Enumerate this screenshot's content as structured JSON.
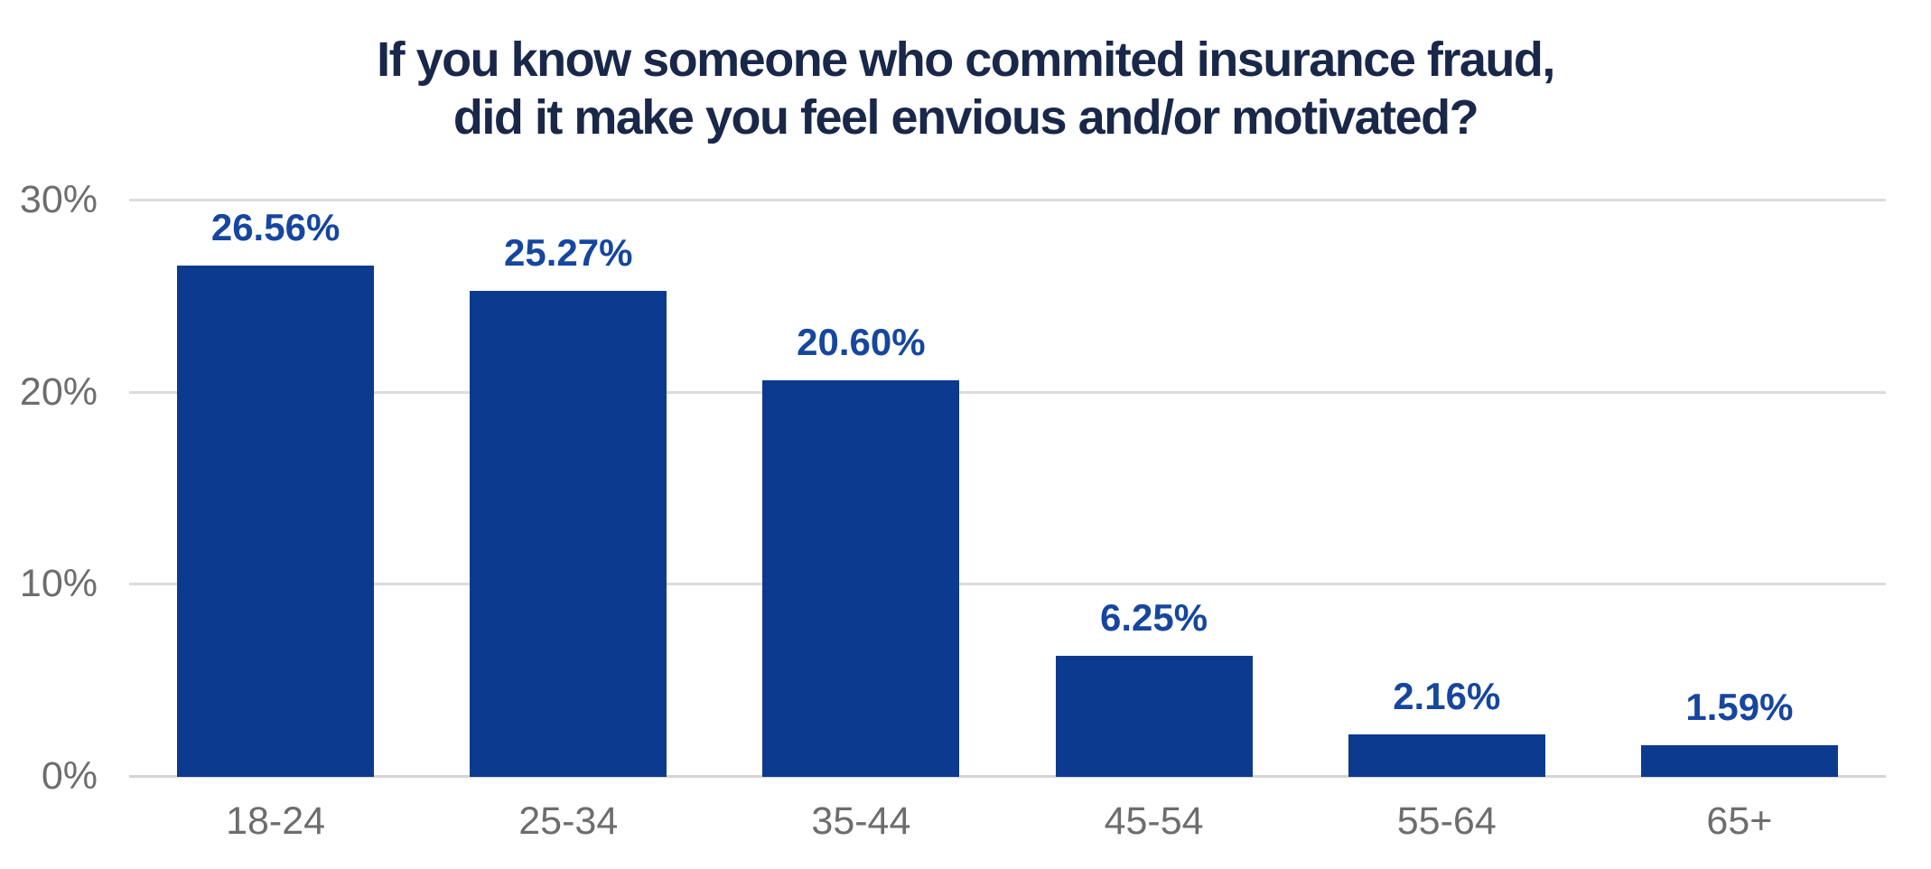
{
  "chart_data": {
    "type": "bar",
    "title": "If you know someone who commited insurance fraud,\ndid it make you feel envious and/or motivated?",
    "categories": [
      "18-24",
      "25-34",
      "35-44",
      "45-54",
      "55-64",
      "65+"
    ],
    "values": [
      26.56,
      25.27,
      20.6,
      6.25,
      2.16,
      1.59
    ],
    "value_labels": [
      "26.56%",
      "25.27%",
      "20.60%",
      "6.25%",
      "2.16%",
      "1.59%"
    ],
    "xlabel": "",
    "ylabel": "",
    "y_ticks": [
      "0%",
      "10%",
      "20%",
      "30%"
    ],
    "y_tick_values": [
      0,
      10,
      20,
      30
    ],
    "ylim": [
      0,
      30
    ],
    "grid": true,
    "legend": "none",
    "colors": {
      "bar": "#0c3a8e",
      "value_label": "#16469e",
      "title": "#192749",
      "axis_text": "#6d6d6d",
      "gridline": "#dcdcdc",
      "baseline": "#d4d4d4",
      "background": "#ffffff"
    }
  }
}
